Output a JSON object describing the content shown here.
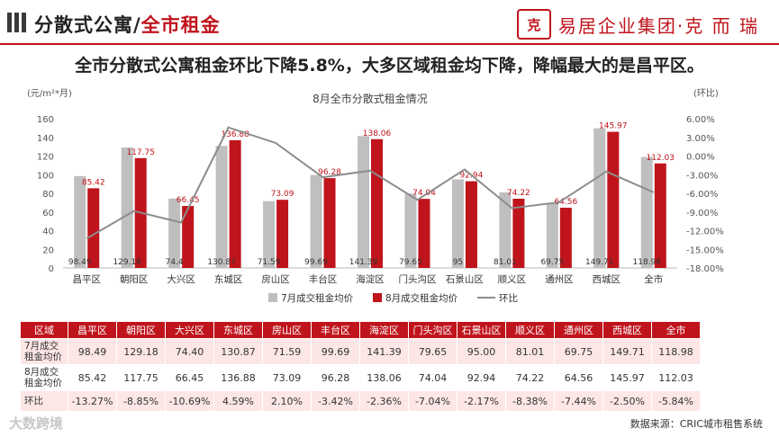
{
  "header": {
    "title_prefix": "分散式公寓/",
    "title_accent": "全市租金",
    "logo_mark": "克",
    "logo_text": "易居企业集团·克 而 瑞"
  },
  "headline": "全市分散式公寓租金环比下降5.8%，大多区域租金均下降，降幅最大的是昌平区。",
  "chart_data": {
    "type": "bar",
    "title": "8月全市分散式租金情况",
    "ylabel_left": "(元/m²*月)",
    "ylabel_right": "(环比)",
    "ylim": [
      0,
      160
    ],
    "y2lim": [
      -18,
      6
    ],
    "left_ticks": [
      "0",
      "20",
      "40",
      "60",
      "80",
      "100",
      "120",
      "140",
      "160"
    ],
    "right_ticks": [
      "-18.00%",
      "-15.00%",
      "-12.00%",
      "-9.00%",
      "-6.00%",
      "-3.00%",
      "0.00%",
      "3.00%",
      "6.00%"
    ],
    "categories": [
      "昌平区",
      "朝阳区",
      "大兴区",
      "东城区",
      "房山区",
      "丰台区",
      "海淀区",
      "门头沟区",
      "石景山区",
      "顺义区",
      "通州区",
      "西城区",
      "全市"
    ],
    "series": [
      {
        "name": "7月成交租金均价",
        "type": "bar",
        "color": "#bfbfbf",
        "values": [
          98.49,
          129.18,
          74.4,
          130.87,
          71.59,
          99.69,
          141.39,
          79.65,
          95.0,
          81.01,
          69.75,
          149.71,
          118.98
        ],
        "labels": [
          "98.49",
          "129.18",
          "74.4",
          "130.87",
          "71.59",
          "99.69",
          "141.39",
          "79.65",
          "95",
          "81.01",
          "69.75",
          "149.71",
          "118.98"
        ]
      },
      {
        "name": "8月成交租金均价",
        "type": "bar",
        "color": "#c0141c",
        "values": [
          85.42,
          117.75,
          66.45,
          136.88,
          73.09,
          96.28,
          138.06,
          74.04,
          92.94,
          74.22,
          64.56,
          145.97,
          112.03
        ],
        "labels": [
          "85.42",
          "117.75",
          "66.45",
          "136.88",
          "73.09",
          "96.28",
          "138.06",
          "74.04",
          "92.94",
          "74.22",
          "64.56",
          "145.97",
          "112.03"
        ]
      },
      {
        "name": "环比",
        "type": "line",
        "color": "#8c8c8c",
        "axis": "right",
        "values": [
          -13.27,
          -8.85,
          -10.69,
          4.59,
          2.1,
          -3.42,
          -2.36,
          -7.04,
          -2.17,
          -8.38,
          -7.44,
          -2.5,
          -5.84
        ]
      }
    ]
  },
  "table": {
    "header_label": "区域",
    "columns": [
      "昌平区",
      "朝阳区",
      "大兴区",
      "东城区",
      "房山区",
      "丰台区",
      "海淀区",
      "门头沟区",
      "石景山区",
      "顺义区",
      "通州区",
      "西城区",
      "全市"
    ],
    "rows": [
      {
        "label": "7月成交租金均价",
        "values": [
          "98.49",
          "129.18",
          "74.40",
          "130.87",
          "71.59",
          "99.69",
          "141.39",
          "79.65",
          "95.00",
          "81.01",
          "69.75",
          "149.71",
          "118.98"
        ]
      },
      {
        "label": "8月成交租金均价",
        "values": [
          "85.42",
          "117.75",
          "66.45",
          "136.88",
          "73.09",
          "96.28",
          "138.06",
          "74.04",
          "92.94",
          "74.22",
          "64.56",
          "145.97",
          "112.03"
        ]
      },
      {
        "label": "环比",
        "values": [
          "-13.27%",
          "-8.85%",
          "-10.69%",
          "4.59%",
          "2.10%",
          "-3.42%",
          "-2.36%",
          "-7.04%",
          "-2.17%",
          "-8.38%",
          "-7.44%",
          "-2.50%",
          "-5.84%"
        ]
      }
    ]
  },
  "footer": {
    "brand": "大数跨境",
    "source": "数据来源：CRIC城市租售系统"
  },
  "colors": {
    "accent": "#c0141c",
    "gray_bar": "#bfbfbf",
    "line": "#8c8c8c"
  }
}
